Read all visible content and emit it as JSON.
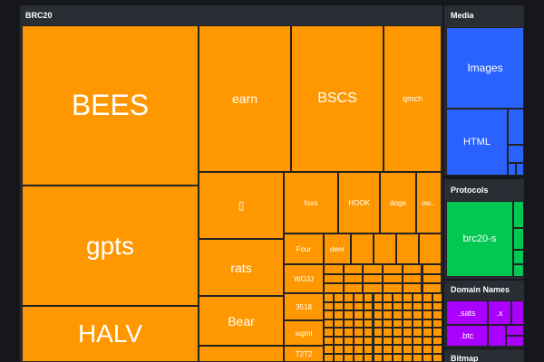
{
  "panels": [
    {
      "title": "BRC20",
      "tiles": [
        "BEES",
        "gpts",
        "HALV",
        "earn",
        "BSCS",
        "qmch",
        "▯",
        "rats",
        "Bear",
        "foxs",
        "HOOK",
        "doge",
        "ow...",
        "Four",
        "deer",
        "WOJJ",
        "3518",
        "wgmi",
        "T2T2"
      ]
    },
    {
      "title": "Media",
      "tiles": [
        "Images",
        "HTML"
      ]
    },
    {
      "title": "Protocols",
      "tiles": [
        "brc20-s"
      ]
    },
    {
      "title": "Domain Names",
      "tiles": [
        ".sats",
        ".x",
        ".btc"
      ]
    },
    {
      "title": "Bitmap",
      "tiles": []
    }
  ]
}
